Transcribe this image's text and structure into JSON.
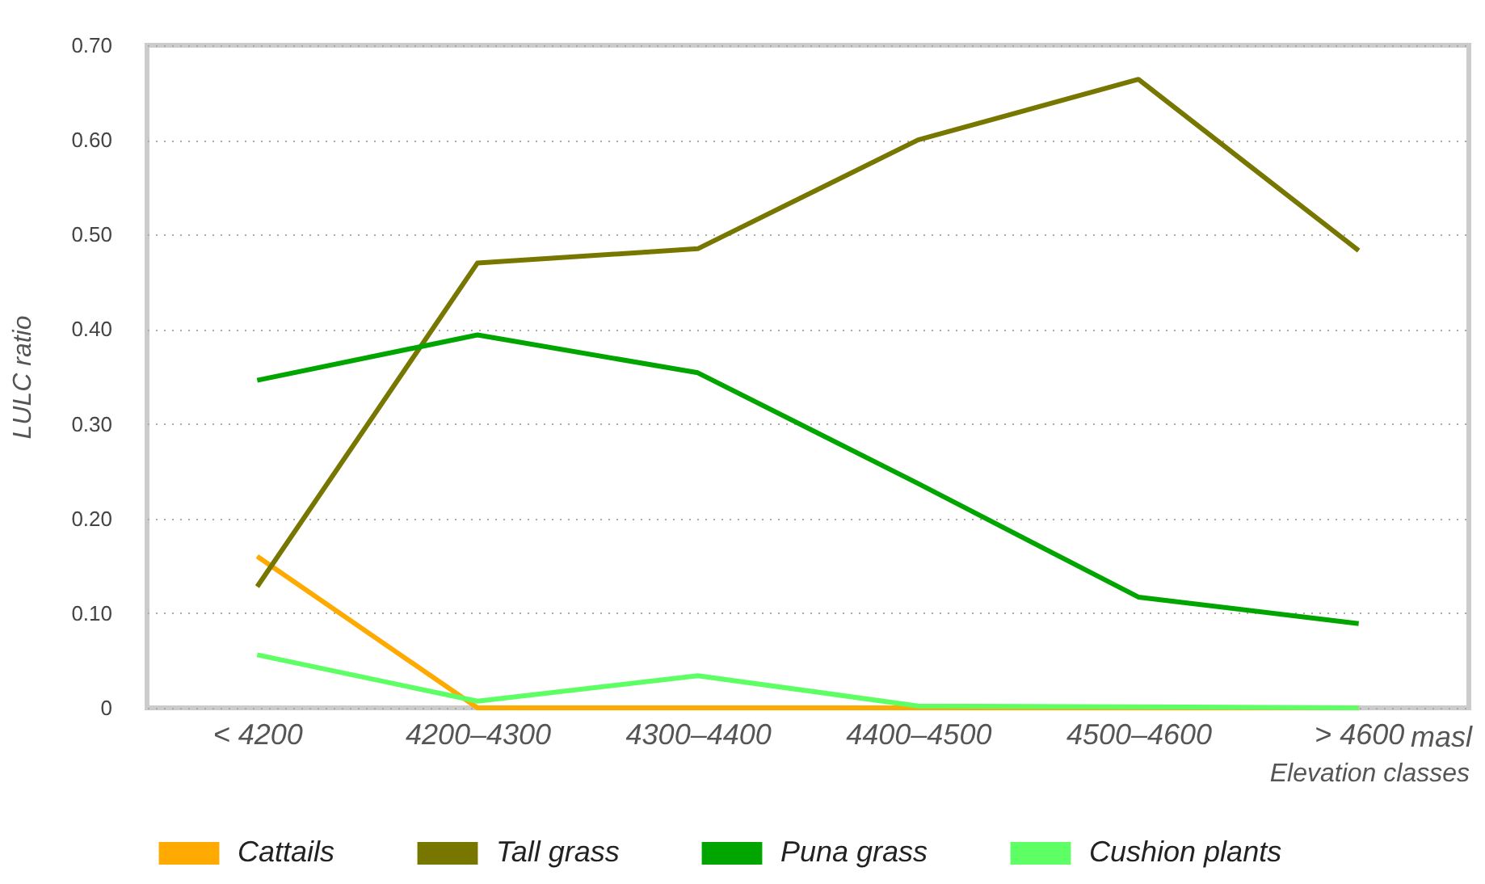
{
  "chart_data": {
    "type": "line",
    "ylabel": "LULC ratio",
    "xlabel": "Elevation classes",
    "annotations": [
      "masl"
    ],
    "categories": [
      "< 4200",
      "4200–4300",
      "4300–4400",
      "4400–4500",
      "4500–4600",
      "> 4600"
    ],
    "series": [
      {
        "name": "Cattails",
        "color": "#ffaa00",
        "values": [
          0.16,
          0,
          0,
          0,
          0,
          0
        ]
      },
      {
        "name": "Tall grass",
        "color": "#777700",
        "values": [
          0.128,
          0.47,
          0.485,
          0.6,
          0.664,
          0.483
        ]
      },
      {
        "name": "Puna grass",
        "color": "#00a500",
        "values": [
          0.346,
          0.394,
          0.354,
          0.237,
          0.117,
          0.089
        ]
      },
      {
        "name": "Cushion plants",
        "color": "#5dff64",
        "values": [
          0.056,
          0.007,
          0.034,
          0.002,
          0.001,
          0
        ]
      }
    ],
    "ylim": [
      0,
      0.7
    ],
    "yticks": [
      0,
      {
        "value": 0.1,
        "label": "0.10"
      },
      {
        "value": 0.2,
        "label": "0.20"
      },
      {
        "value": 0.3,
        "label": "0.30"
      },
      {
        "value": 0.4,
        "label": "0.40"
      },
      {
        "value": 0.5,
        "label": "0.50"
      },
      {
        "value": 0.6,
        "label": "0.60"
      },
      {
        "value": 0.7,
        "label": "0.70"
      }
    ],
    "grid": "y",
    "legend": "bottom",
    "line_style": "solid"
  }
}
